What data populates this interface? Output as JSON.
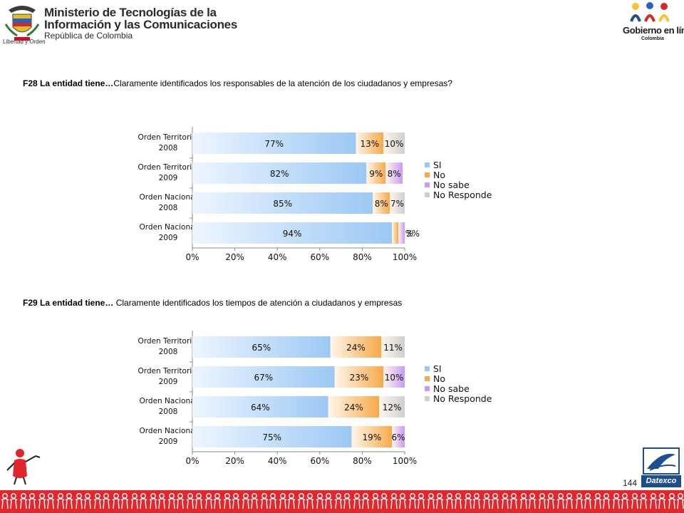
{
  "header": {
    "ministry_line1": "Ministerio de Tecnologías de la",
    "ministry_line2": "Información y las Comunicaciones",
    "ministry_line3": "República de Colombia",
    "motto": "Libertad y Orden",
    "gel_name": "Gobierno en línea",
    "gel_country": "Colombia"
  },
  "questions": [
    {
      "code": "F28 La  entidad tiene…",
      "text": "Claramente  identificados los responsables de la atención de los ciudadanos y empresas?"
    },
    {
      "code": "F29  La  entidad tiene… ",
      "text": "Claramente  identificados los tiempos de atención a ciudadanos y empresas"
    }
  ],
  "colors": {
    "si": "#9cc8f4",
    "no": "#f7a94a",
    "no_sabe": "#c99af4",
    "no_responde": "#cfcfcf",
    "footer": "#e3262b",
    "datexco": "#1f4e8c"
  },
  "chart_data": [
    {
      "type": "bar",
      "orientation": "horizontal",
      "stacked": true,
      "categories": [
        [
          "Orden Territorial",
          "2008"
        ],
        [
          "Orden Territorial",
          "2009"
        ],
        [
          "Orden Nacional",
          "2008"
        ],
        [
          "Orden Nacional",
          "2009"
        ]
      ],
      "series": [
        {
          "name": "SI",
          "values": [
            77,
            82,
            85,
            94
          ],
          "labels": [
            "77%",
            "82%",
            "85%",
            "94%"
          ]
        },
        {
          "name": "No",
          "values": [
            13,
            9,
            8,
            3
          ],
          "labels": [
            "13%",
            "9%",
            "8%",
            "3%"
          ]
        },
        {
          "name": "No sabe",
          "values": [
            0,
            8,
            0,
            3
          ],
          "labels": [
            "",
            "8%",
            "",
            "3%"
          ]
        },
        {
          "name": "No Responde",
          "values": [
            10,
            0,
            7,
            0
          ],
          "labels": [
            "10%",
            "",
            "7%",
            ""
          ]
        }
      ],
      "xticks": [
        "0%",
        "20%",
        "40%",
        "60%",
        "80%",
        "100%"
      ],
      "xlim": [
        0,
        100
      ],
      "legend": "right"
    },
    {
      "type": "bar",
      "orientation": "horizontal",
      "stacked": true,
      "categories": [
        [
          "Orden Territorial",
          "2008"
        ],
        [
          "Orden Territorial",
          "2009"
        ],
        [
          "Orden Nacional",
          "2008"
        ],
        [
          "Orden Nacional",
          "2009"
        ]
      ],
      "series": [
        {
          "name": "SI",
          "values": [
            65,
            67,
            64,
            75
          ],
          "labels": [
            "65%",
            "67%",
            "64%",
            "75%"
          ]
        },
        {
          "name": "No",
          "values": [
            24,
            23,
            24,
            19
          ],
          "labels": [
            "24%",
            "23%",
            "24%",
            "19%"
          ]
        },
        {
          "name": "No sabe",
          "values": [
            0,
            10,
            0,
            6
          ],
          "labels": [
            "",
            "10%",
            "",
            "6%"
          ]
        },
        {
          "name": "No Responde",
          "values": [
            11,
            0,
            12,
            0
          ],
          "labels": [
            "11%",
            "",
            "12%",
            ""
          ]
        }
      ],
      "xticks": [
        "0%",
        "20%",
        "40%",
        "60%",
        "80%",
        "100%"
      ],
      "xlim": [
        0,
        100
      ],
      "legend": "right"
    }
  ],
  "page_number": "144",
  "datexco_label": "Datexco"
}
